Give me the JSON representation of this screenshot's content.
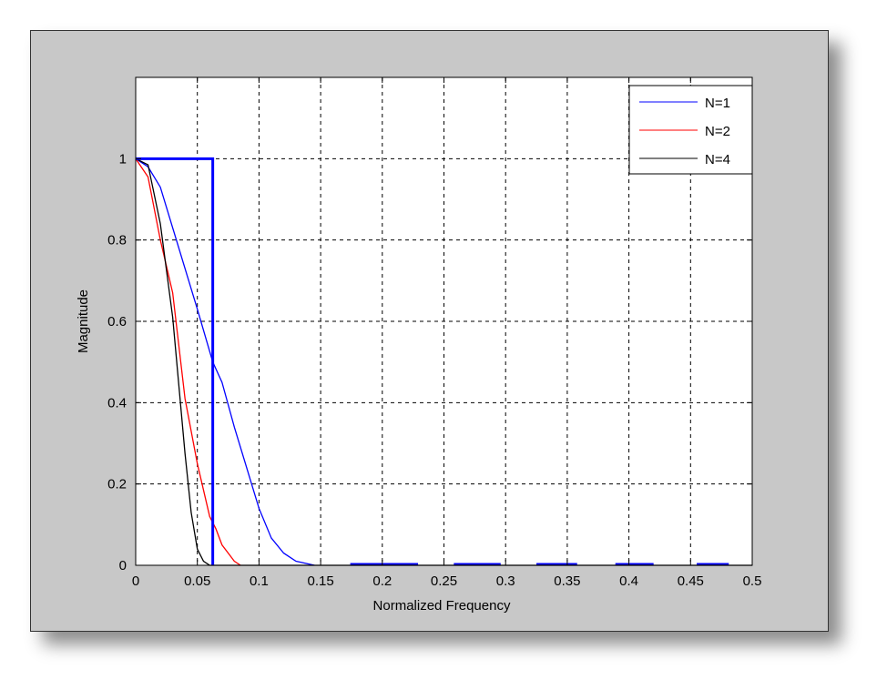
{
  "chart_data": {
    "type": "line",
    "title": "",
    "xlabel": "Normalized Frequency",
    "ylabel": "Magnitude",
    "xlim": [
      0,
      0.5
    ],
    "ylim": [
      0,
      1.2
    ],
    "xticks": [
      0,
      0.05,
      0.1,
      0.15,
      0.2,
      0.25,
      0.3,
      0.35,
      0.4,
      0.45,
      0.5
    ],
    "xtick_labels": [
      "0",
      "0.05",
      "0.1",
      "0.15",
      "0.2",
      "0.25",
      "0.3",
      "0.35",
      "0.4",
      "0.45",
      "0.5"
    ],
    "yticks": [
      0,
      0.2,
      0.4,
      0.6,
      0.8,
      1
    ],
    "ytick_labels": [
      "0",
      "0.2",
      "0.4",
      "0.6",
      "0.8",
      "1"
    ],
    "grid": true,
    "legend_position": "top-right",
    "series": [
      {
        "name": "N=1",
        "color": "#0000ff",
        "x": [
          0,
          0.01,
          0.02,
          0.03,
          0.04,
          0.05,
          0.0625,
          0.07,
          0.08,
          0.09,
          0.1,
          0.11,
          0.12,
          0.13,
          0.145
        ],
        "y": [
          1,
          0.98,
          0.93,
          0.83,
          0.73,
          0.63,
          0.5,
          0.45,
          0.34,
          0.24,
          0.14,
          0.067,
          0.03,
          0.01,
          0
        ]
      },
      {
        "name": "N=2",
        "color": "#ff0000",
        "x": [
          0,
          0.01,
          0.02,
          0.03,
          0.035,
          0.04,
          0.05,
          0.06,
          0.065,
          0.07,
          0.08,
          0.085
        ],
        "y": [
          1,
          0.955,
          0.8,
          0.67,
          0.54,
          0.41,
          0.25,
          0.12,
          0.09,
          0.05,
          0.01,
          0
        ]
      },
      {
        "name": "N=4",
        "color": "#000000",
        "x": [
          0,
          0.01,
          0.02,
          0.03,
          0.04,
          0.045,
          0.05,
          0.055,
          0.06,
          0.5
        ],
        "y": [
          1,
          0.985,
          0.84,
          0.61,
          0.275,
          0.13,
          0.04,
          0.01,
          0,
          0
        ]
      },
      {
        "color": "#0000ff",
        "x": [
          0,
          0.0625,
          0.0625
        ],
        "y": [
          1,
          1,
          0
        ]
      }
    ],
    "baseline_segments": {
      "color": "#0000ff",
      "ranges": [
        [
          0.174,
          0.229
        ],
        [
          0.258,
          0.296
        ],
        [
          0.325,
          0.358
        ],
        [
          0.389,
          0.42
        ],
        [
          0.455,
          0.481
        ]
      ]
    }
  }
}
